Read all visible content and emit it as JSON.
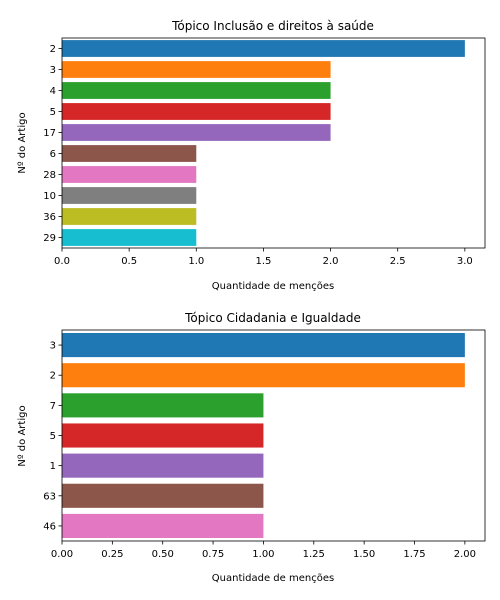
{
  "chart_data": [
    {
      "type": "bar",
      "orientation": "horizontal",
      "title": "Tópico Inclusão e direitos à saúde",
      "xlabel": "Quantidade de menções",
      "ylabel": "Nº do Artigo",
      "categories": [
        "2",
        "3",
        "4",
        "5",
        "17",
        "6",
        "28",
        "10",
        "36",
        "29"
      ],
      "values": [
        3,
        2,
        2,
        2,
        2,
        1,
        1,
        1,
        1,
        1
      ],
      "colors": [
        "#1f77b4",
        "#ff7f0e",
        "#2ca02c",
        "#d62728",
        "#9467bd",
        "#8c564b",
        "#e377c2",
        "#7f7f7f",
        "#bcbd22",
        "#17becf"
      ],
      "xlim": [
        0,
        3.15
      ],
      "xticks": [
        "0.0",
        "0.5",
        "1.0",
        "1.5",
        "2.0",
        "2.5",
        "3.0"
      ],
      "grid": false,
      "legend": "none"
    },
    {
      "type": "bar",
      "orientation": "horizontal",
      "title": "Tópico Cidadania e Igualdade",
      "xlabel": "Quantidade de menções",
      "ylabel": "Nº do Artigo",
      "categories": [
        "3",
        "2",
        "7",
        "5",
        "1",
        "63",
        "46"
      ],
      "values": [
        2,
        2,
        1,
        1,
        1,
        1,
        1
      ],
      "colors": [
        "#1f77b4",
        "#ff7f0e",
        "#2ca02c",
        "#d62728",
        "#9467bd",
        "#8c564b",
        "#e377c2"
      ],
      "xlim": [
        0,
        2.1
      ],
      "xticks": [
        "0.00",
        "0.25",
        "0.50",
        "0.75",
        "1.00",
        "1.25",
        "1.50",
        "1.75",
        "2.00"
      ],
      "grid": false,
      "legend": "none"
    }
  ]
}
